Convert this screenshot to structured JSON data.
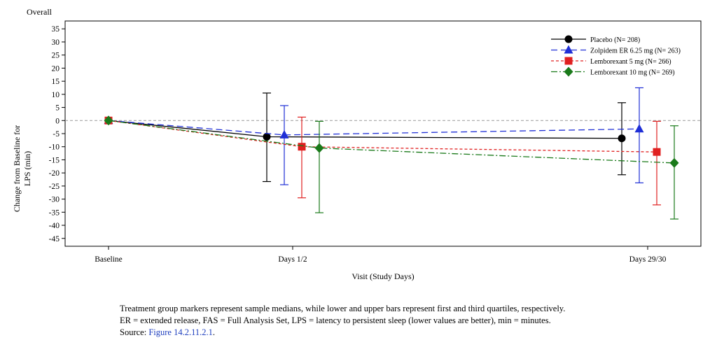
{
  "chart_data": {
    "type": "line",
    "title": "Overall",
    "xlabel": "Visit (Study Days)",
    "ylabel": "Change from Baseline for LPS (min)",
    "categories": [
      "Baseline",
      "Days 1/2",
      "Days 29/30"
    ],
    "ylim": [
      -48,
      38
    ],
    "yticks": [
      35,
      30,
      25,
      20,
      15,
      10,
      5,
      0,
      -5,
      -10,
      -15,
      -20,
      -25,
      -30,
      -35,
      -40,
      -45
    ],
    "reference_line": 0,
    "grid": false,
    "legend_position": "top-right",
    "series": [
      {
        "name": "Placebo (N= 208)",
        "color": "#000000",
        "line_style": "solid",
        "marker": "circle",
        "medians": [
          0,
          -6.2,
          -6.8
        ],
        "q1": [
          null,
          -23.3,
          -20.7
        ],
        "q3": [
          null,
          10.5,
          6.8
        ]
      },
      {
        "name": "Zolpidem ER 6.25 mg (N= 263)",
        "color": "#1f2fd6",
        "line_style": "long-dash",
        "marker": "triangle",
        "medians": [
          0,
          -5.5,
          -3.2
        ],
        "q1": [
          null,
          -24.5,
          -23.8
        ],
        "q3": [
          null,
          5.7,
          12.5
        ]
      },
      {
        "name": "Lemborexant 5 mg (N= 266)",
        "color": "#e02020",
        "line_style": "short-dash",
        "marker": "square",
        "medians": [
          0,
          -10.0,
          -12.0
        ],
        "q1": [
          null,
          -29.5,
          -32.2
        ],
        "q3": [
          null,
          1.3,
          -0.3
        ]
      },
      {
        "name": "Lemborexant 10 mg (N= 269)",
        "color": "#1a7a1a",
        "line_style": "dash-dot",
        "marker": "diamond",
        "medians": [
          0,
          -10.5,
          -16.2
        ],
        "q1": [
          null,
          -35.2,
          -37.6
        ],
        "q3": [
          null,
          -0.3,
          -2.0
        ]
      }
    ]
  },
  "footnotes": {
    "line1": "Treatment group markers represent sample medians, while lower and upper bars represent first and third quartiles, respectively.",
    "line2": "ER = extended release, FAS = Full Analysis Set, LPS = latency to persistent sleep (lower values are better), min = minutes.",
    "source_label": "Source:",
    "source_link": "Figure 14.2.11.2.1",
    "source_end": "."
  }
}
